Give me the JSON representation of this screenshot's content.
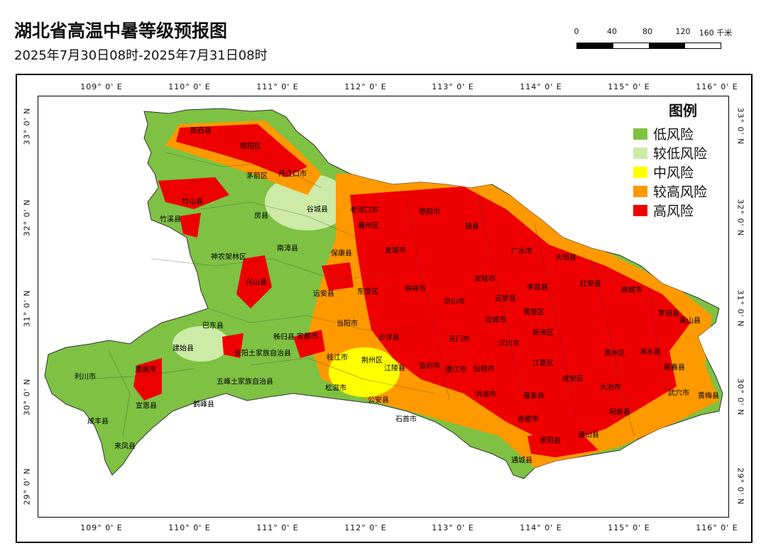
{
  "header": {
    "title": "湖北省高温中暑等级预报图",
    "subtitle": "2025年7月30日08时-2025年7月31日08时"
  },
  "scalebar": {
    "labels": [
      "0",
      "40",
      "80",
      "120",
      "160 千米"
    ]
  },
  "axes": {
    "longitude_labels": [
      "109° 0' E",
      "110° 0' E",
      "111° 0' E",
      "112° 0' E",
      "113° 0' E",
      "114° 0' E",
      "115° 0' E",
      "116° 0' E"
    ],
    "latitude_labels": [
      "33° 0' N",
      "32° 0' N",
      "31° 0' N",
      "30° 0' N",
      "29° 0' N"
    ]
  },
  "legend": {
    "title": "图例",
    "items": [
      {
        "label": "低风险",
        "color": "#7ec143"
      },
      {
        "label": "较低风险",
        "color": "#cdeaa6"
      },
      {
        "label": "中风险",
        "color": "#ffff00"
      },
      {
        "label": "较高风险",
        "color": "#ff9900"
      },
      {
        "label": "高风险",
        "color": "#ee0000"
      }
    ]
  },
  "places": [
    {
      "name": "郧西县"
    },
    {
      "name": "郧阳区"
    },
    {
      "name": "茅箭区"
    },
    {
      "name": "丹江口市"
    },
    {
      "name": "竹山县"
    },
    {
      "name": "竹溪县"
    },
    {
      "name": "房县"
    },
    {
      "name": "谷城县"
    },
    {
      "name": "老河口市"
    },
    {
      "name": "襄州区"
    },
    {
      "name": "枣阳市"
    },
    {
      "name": "随县"
    },
    {
      "name": "南漳县"
    },
    {
      "name": "宜城市"
    },
    {
      "name": "保康县"
    },
    {
      "name": "神农架林区"
    },
    {
      "name": "兴山县"
    },
    {
      "name": "远安县"
    },
    {
      "name": "京山市"
    },
    {
      "name": "钟祥市"
    },
    {
      "name": "广水市"
    },
    {
      "name": "大悟县"
    },
    {
      "name": "红安县"
    },
    {
      "name": "麻城市"
    },
    {
      "name": "孝昌县"
    },
    {
      "name": "安陆市"
    },
    {
      "name": "云梦县"
    },
    {
      "name": "应城市"
    },
    {
      "name": "天门市"
    },
    {
      "name": "汉川市"
    },
    {
      "name": "罗田县"
    },
    {
      "name": "英山县"
    },
    {
      "name": "黄州区"
    },
    {
      "name": "浠水县"
    },
    {
      "name": "蕲春县"
    },
    {
      "name": "武穴市"
    },
    {
      "name": "黄梅县"
    },
    {
      "name": "嘉鱼县"
    },
    {
      "name": "咸安区"
    },
    {
      "name": "通山县"
    },
    {
      "name": "崇阳县"
    },
    {
      "name": "通城县"
    },
    {
      "name": "赤壁市"
    },
    {
      "name": "监利市"
    },
    {
      "name": "洪湖市"
    },
    {
      "name": "石首市"
    },
    {
      "name": "公安县"
    },
    {
      "name": "松滋市"
    },
    {
      "name": "荆州区"
    },
    {
      "name": "江陵县"
    },
    {
      "name": "沙洋县"
    },
    {
      "name": "潜江市"
    },
    {
      "name": "仙桃市"
    },
    {
      "name": "当阳市"
    },
    {
      "name": "枝江市"
    },
    {
      "name": "宜都市"
    },
    {
      "name": "长阳土家族自治县"
    },
    {
      "name": "五峰土家族自治县"
    },
    {
      "name": "巴东县"
    },
    {
      "name": "秭归县"
    },
    {
      "name": "建始县"
    },
    {
      "name": "恩施市"
    },
    {
      "name": "利川市"
    },
    {
      "name": "宣恩县"
    },
    {
      "name": "咸丰县"
    },
    {
      "name": "来凤县"
    },
    {
      "name": "鹤峰县"
    },
    {
      "name": "东宝区"
    },
    {
      "name": "阳新县"
    },
    {
      "name": "大冶市"
    },
    {
      "name": "黄陂区"
    },
    {
      "name": "新洲区"
    },
    {
      "name": "江夏区"
    }
  ]
}
